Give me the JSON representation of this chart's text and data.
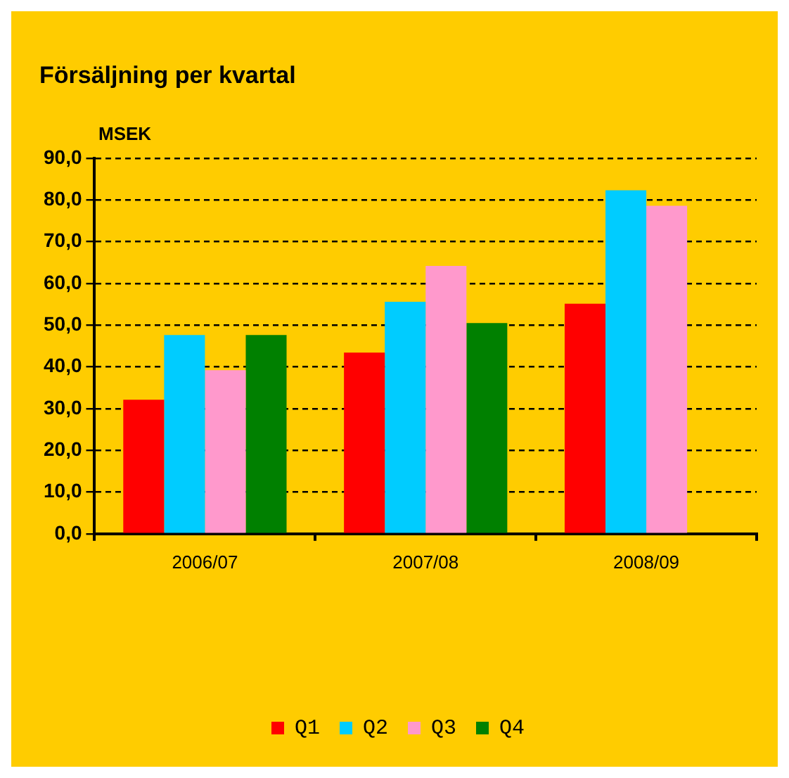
{
  "chart_data": {
    "type": "bar",
    "title": "Försäljning per kvartal",
    "ylabel": "MSEK",
    "categories": [
      "2006/07",
      "2007/08",
      "2008/09"
    ],
    "series": [
      {
        "name": "Q1",
        "color": "#ff0000",
        "values": [
          32.1,
          43.4,
          55.1
        ]
      },
      {
        "name": "Q2",
        "color": "#00ccff",
        "values": [
          47.6,
          55.6,
          82.3
        ]
      },
      {
        "name": "Q3",
        "color": "#ff99cc",
        "values": [
          39.2,
          64.2,
          78.6
        ]
      },
      {
        "name": "Q4",
        "color": "#008000",
        "values": [
          47.6,
          50.5,
          null
        ]
      }
    ],
    "ylim": [
      0,
      90
    ],
    "yticks": [
      {
        "value": 0,
        "label": "0,0"
      },
      {
        "value": 10,
        "label": "10,0"
      },
      {
        "value": 20,
        "label": "20,0"
      },
      {
        "value": 30,
        "label": "30,0"
      },
      {
        "value": 40,
        "label": "40,0"
      },
      {
        "value": 50,
        "label": "50,0"
      },
      {
        "value": 60,
        "label": "60,0"
      },
      {
        "value": 70,
        "label": "70,0"
      },
      {
        "value": 80,
        "label": "80,0"
      },
      {
        "value": 90,
        "label": "90,0"
      }
    ],
    "grid": "y",
    "legend": "bottom"
  }
}
